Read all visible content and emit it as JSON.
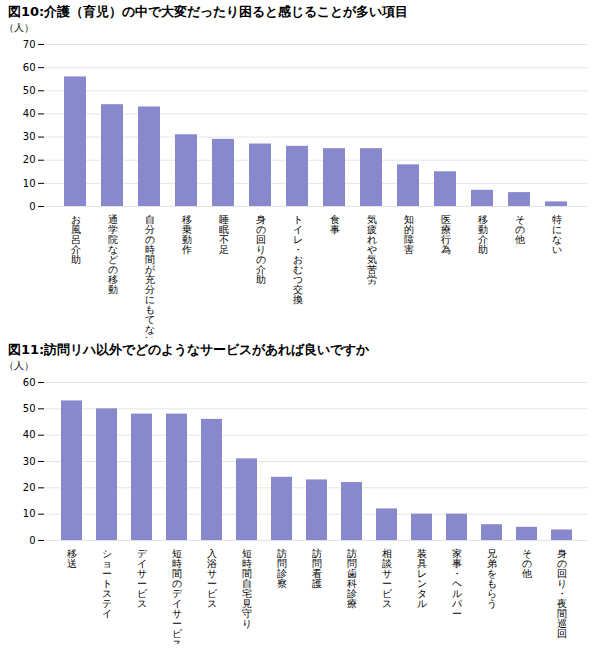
{
  "chart_data": [
    {
      "type": "bar",
      "title": "図10:介護（育児）の中で大変だったり困ると感じることが多い項目",
      "categories": [
        "お風呂介助",
        "通学院などの移動",
        "自分の時間が充分にもてない",
        "移乗動作",
        "睡眠不足",
        "身の回りの介助",
        "トイレ・おむつ交換",
        "食事",
        "気疲れや気苦労",
        "知的障害",
        "医療行為",
        "移動介助",
        "その他",
        "特にない"
      ],
      "values": [
        56,
        44,
        43,
        31,
        29,
        27,
        26,
        25,
        25,
        18,
        15,
        7,
        6,
        2
      ],
      "ylabel": "（人）",
      "color": "#8888cc",
      "ylim": [
        0,
        70
      ],
      "yticks": [
        0,
        10,
        20,
        30,
        40,
        50,
        60,
        70
      ],
      "grid": true
    },
    {
      "type": "bar",
      "title": "図11:訪問リハ以外でどのようなサービスがあれば良いですか",
      "categories": [
        "移送",
        "ショートステイ",
        "デイサービス",
        "短時間のデイサービス",
        "入浴サービス",
        "短時間自宅見守り",
        "訪問診察",
        "訪問看護",
        "訪問歯科診療",
        "相談サービス",
        "装具レンタル",
        "家事・ヘルパー",
        "兄弟をもらう",
        "その他",
        "身の回り・夜間巡回"
      ],
      "values": [
        53,
        50,
        48,
        48,
        46,
        31,
        24,
        23,
        22,
        12,
        10,
        10,
        6,
        5,
        4
      ],
      "ylabel": "（人）",
      "color": "#8888cc",
      "ylim": [
        0,
        60
      ],
      "yticks": [
        0,
        10,
        20,
        30,
        40,
        50,
        60
      ],
      "grid": true
    }
  ]
}
